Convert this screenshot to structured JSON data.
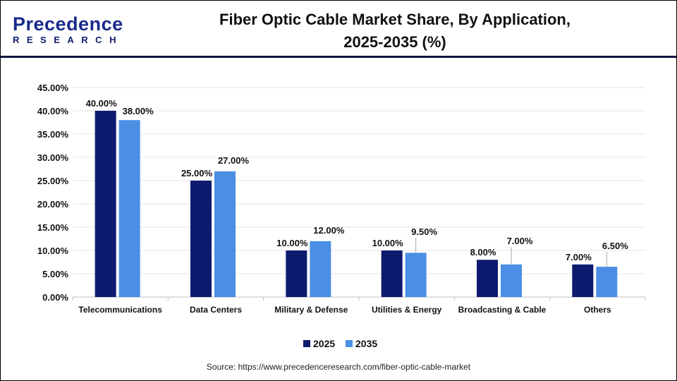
{
  "header": {
    "logo_line1": "Precedence",
    "logo_line2": "RESEARCH",
    "title_line1": "Fiber Optic Cable Market Share, By Application,",
    "title_line2": "2025-2035 (%)"
  },
  "source": "Source: https://www.precedenceresearch.com/fiber-optic-cable-market",
  "colors": {
    "series_2025": "#0d1b6e",
    "series_2035": "#4a8fe4"
  },
  "chart_data": {
    "type": "bar",
    "title": "Fiber Optic Cable Market Share, By Application, 2025-2035 (%)",
    "categories": [
      "Telecommunications",
      "Data Centers",
      "Military & Defense",
      "Utilities & Energy",
      "Broadcasting & Cable",
      "Others"
    ],
    "series": [
      {
        "name": "2025",
        "values": [
          40,
          25,
          10,
          10,
          8,
          7
        ],
        "labels": [
          "40.00%",
          "25.00%",
          "10.00%",
          "10.00%",
          "8.00%",
          "7.00%"
        ]
      },
      {
        "name": "2035",
        "values": [
          38,
          27,
          12,
          9.5,
          7,
          6.5
        ],
        "labels": [
          "38.00%",
          "27.00%",
          "12.00%",
          "9.50%",
          "7.00%",
          "6.50%"
        ]
      }
    ],
    "ylim": [
      0,
      45
    ],
    "yticks": [
      "0.00%",
      "5.00%",
      "10.00%",
      "15.00%",
      "20.00%",
      "25.00%",
      "30.00%",
      "35.00%",
      "40.00%",
      "45.00%"
    ],
    "grid": true,
    "legend": "bottom"
  }
}
